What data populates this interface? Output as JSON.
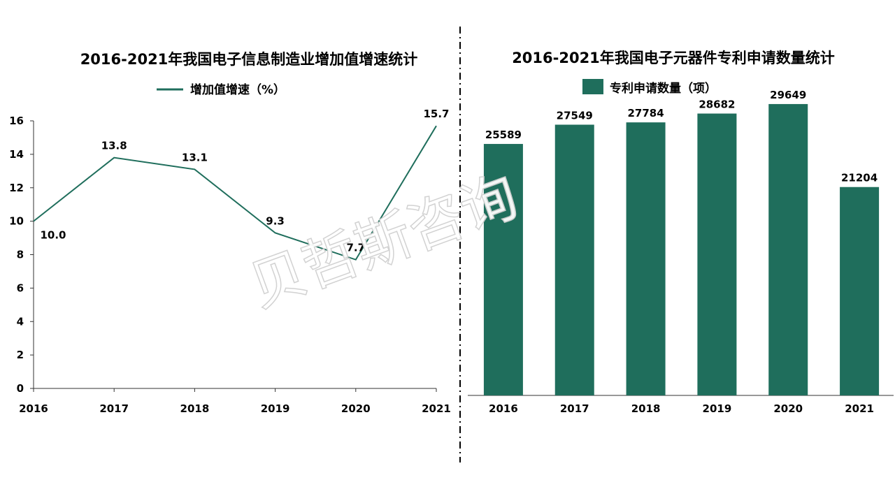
{
  "watermark": "贝哲斯咨询",
  "chart_data": [
    {
      "type": "line",
      "title": "2016-2021年我国电子信息制造业增加值增速统计",
      "legend": "增加值增速（%）",
      "categories": [
        "2016",
        "2017",
        "2018",
        "2019",
        "2020",
        "2021"
      ],
      "values": [
        10.0,
        13.8,
        13.1,
        9.3,
        7.7,
        15.7
      ],
      "data_labels": [
        "10.0",
        "13.8",
        "13.1",
        "9.3",
        "7.7",
        "15.7"
      ],
      "yticks": [
        "0",
        "2",
        "4",
        "6",
        "8",
        "10",
        "12",
        "14",
        "16"
      ],
      "ylim": [
        0,
        16
      ],
      "color": "#1f6e5c",
      "grid": false
    },
    {
      "type": "bar",
      "title": "2016-2021年我国电子元器件专利申请数量统计",
      "legend": "专利申请数量（项）",
      "categories": [
        "2016",
        "2017",
        "2018",
        "2019",
        "2020",
        "2021"
      ],
      "values": [
        25589,
        27549,
        27784,
        28682,
        29649,
        21204
      ],
      "data_labels": [
        "25589",
        "27549",
        "27784",
        "28682",
        "29649",
        "21204"
      ],
      "ylim": [
        0,
        30000
      ],
      "color": "#1f6e5c",
      "grid": false
    }
  ]
}
